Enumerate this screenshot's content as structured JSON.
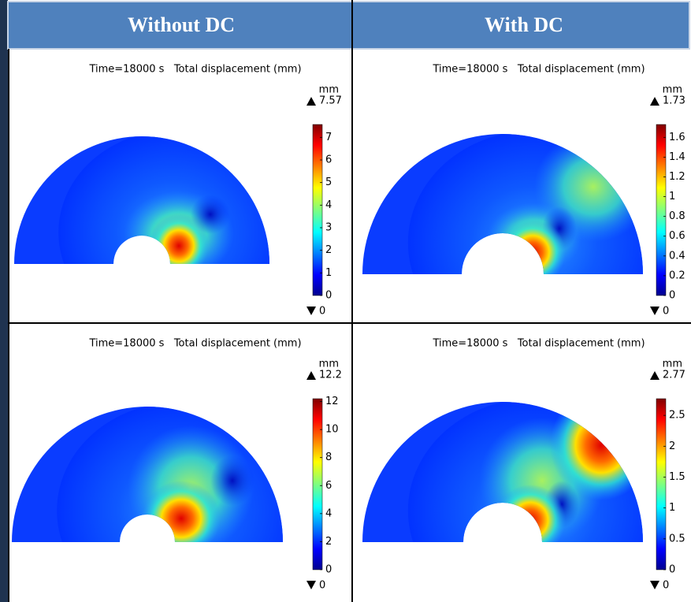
{
  "header": {
    "columns": [
      "Without DC",
      "With DC"
    ]
  },
  "panels": [
    {
      "title": "Time=18000 s   Total displacement (mm)",
      "unit": "mm",
      "max": 7.57,
      "min": 0,
      "ticks": [
        0,
        1,
        2,
        3,
        4,
        5,
        6,
        7
      ]
    },
    {
      "title": "Time=18000 s   Total displacement (mm)",
      "unit": "mm",
      "max": 1.73,
      "min": 0,
      "ticks": [
        0,
        0.2,
        0.4,
        0.6,
        0.8,
        1,
        1.2,
        1.4,
        1.6
      ]
    },
    {
      "title": "Time=18000 s   Total displacement (mm)",
      "unit": "mm",
      "max": 12.2,
      "min": 0,
      "ticks": [
        0,
        2,
        4,
        6,
        8,
        10,
        12
      ]
    },
    {
      "title": "Time=18000 s   Total displacement (mm)",
      "unit": "mm",
      "max": 2.77,
      "min": 0,
      "ticks": [
        0,
        0.5,
        1,
        1.5,
        2,
        2.5
      ]
    }
  ]
}
